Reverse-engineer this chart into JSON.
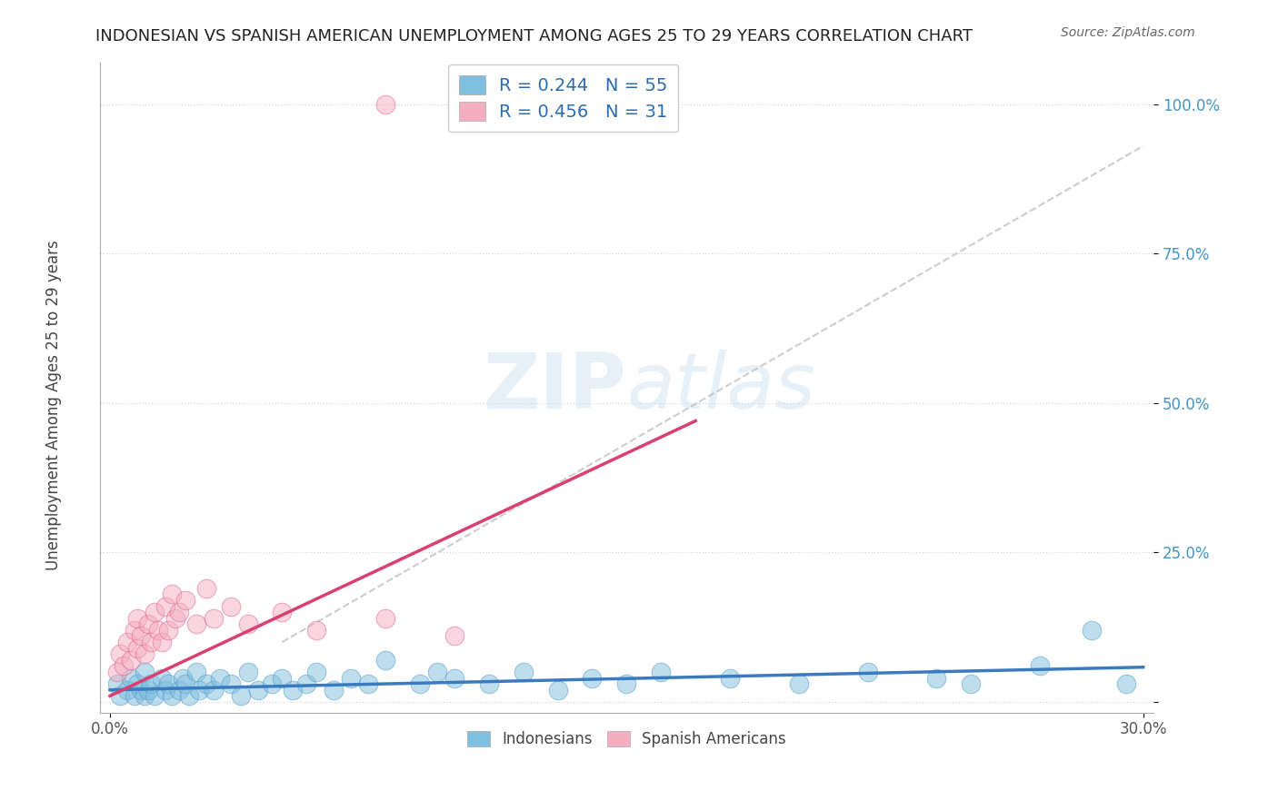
{
  "title": "INDONESIAN VS SPANISH AMERICAN UNEMPLOYMENT AMONG AGES 25 TO 29 YEARS CORRELATION CHART",
  "source": "Source: ZipAtlas.com",
  "ylabel": "Unemployment Among Ages 25 to 29 years",
  "xlim": [
    0.0,
    0.3
  ],
  "ylim": [
    0.0,
    1.05
  ],
  "xtick_positions": [
    0.0,
    0.3
  ],
  "xticklabels": [
    "0.0%",
    "30.0%"
  ],
  "yticks": [
    0.0,
    0.25,
    0.5,
    0.75,
    1.0
  ],
  "yticklabels": [
    "",
    "25.0%",
    "50.0%",
    "75.0%",
    "100.0%"
  ],
  "blue_color": "#7fbfdf",
  "pink_color": "#f4aec0",
  "blue_edge_color": "#5599c8",
  "pink_edge_color": "#e06090",
  "blue_line_color": "#3a7bbf",
  "pink_line_color": "#d94070",
  "grid_color": "#cccccc",
  "R_blue": 0.244,
  "N_blue": 55,
  "R_pink": 0.456,
  "N_pink": 31,
  "legend_label_blue": "Indonesians",
  "legend_label_pink": "Spanish Americans",
  "watermark": "ZIPatlas",
  "background_color": "#ffffff",
  "blue_scatter_x": [
    0.002,
    0.003,
    0.005,
    0.006,
    0.007,
    0.008,
    0.009,
    0.01,
    0.01,
    0.011,
    0.012,
    0.013,
    0.015,
    0.016,
    0.017,
    0.018,
    0.02,
    0.021,
    0.022,
    0.023,
    0.025,
    0.026,
    0.028,
    0.03,
    0.032,
    0.035,
    0.038,
    0.04,
    0.043,
    0.047,
    0.05,
    0.053,
    0.057,
    0.06,
    0.065,
    0.07,
    0.075,
    0.08,
    0.09,
    0.095,
    0.1,
    0.11,
    0.12,
    0.13,
    0.14,
    0.15,
    0.16,
    0.18,
    0.2,
    0.22,
    0.24,
    0.25,
    0.27,
    0.285,
    0.295
  ],
  "blue_scatter_y": [
    0.03,
    0.01,
    0.02,
    0.04,
    0.01,
    0.03,
    0.02,
    0.01,
    0.05,
    0.02,
    0.03,
    0.01,
    0.04,
    0.02,
    0.03,
    0.01,
    0.02,
    0.04,
    0.03,
    0.01,
    0.05,
    0.02,
    0.03,
    0.02,
    0.04,
    0.03,
    0.01,
    0.05,
    0.02,
    0.03,
    0.04,
    0.02,
    0.03,
    0.05,
    0.02,
    0.04,
    0.03,
    0.07,
    0.03,
    0.05,
    0.04,
    0.03,
    0.05,
    0.02,
    0.04,
    0.03,
    0.05,
    0.04,
    0.03,
    0.05,
    0.04,
    0.03,
    0.06,
    0.12,
    0.03
  ],
  "pink_scatter_x": [
    0.002,
    0.003,
    0.004,
    0.005,
    0.006,
    0.007,
    0.008,
    0.008,
    0.009,
    0.01,
    0.011,
    0.012,
    0.013,
    0.014,
    0.015,
    0.016,
    0.017,
    0.018,
    0.019,
    0.02,
    0.022,
    0.025,
    0.028,
    0.03,
    0.035,
    0.04,
    0.05,
    0.06,
    0.08,
    0.1,
    0.08
  ],
  "pink_scatter_y": [
    0.05,
    0.08,
    0.06,
    0.1,
    0.07,
    0.12,
    0.09,
    0.14,
    0.11,
    0.08,
    0.13,
    0.1,
    0.15,
    0.12,
    0.1,
    0.16,
    0.12,
    0.18,
    0.14,
    0.15,
    0.17,
    0.13,
    0.19,
    0.14,
    0.16,
    0.13,
    0.15,
    0.12,
    0.14,
    0.11,
    1.0
  ],
  "blue_line_x": [
    0.0,
    0.3
  ],
  "blue_line_y": [
    0.02,
    0.058
  ],
  "pink_line_x": [
    0.0,
    0.17
  ],
  "pink_line_y": [
    0.01,
    0.47
  ],
  "gray_line_x": [
    0.05,
    0.3
  ],
  "gray_line_y": [
    0.1,
    0.93
  ]
}
